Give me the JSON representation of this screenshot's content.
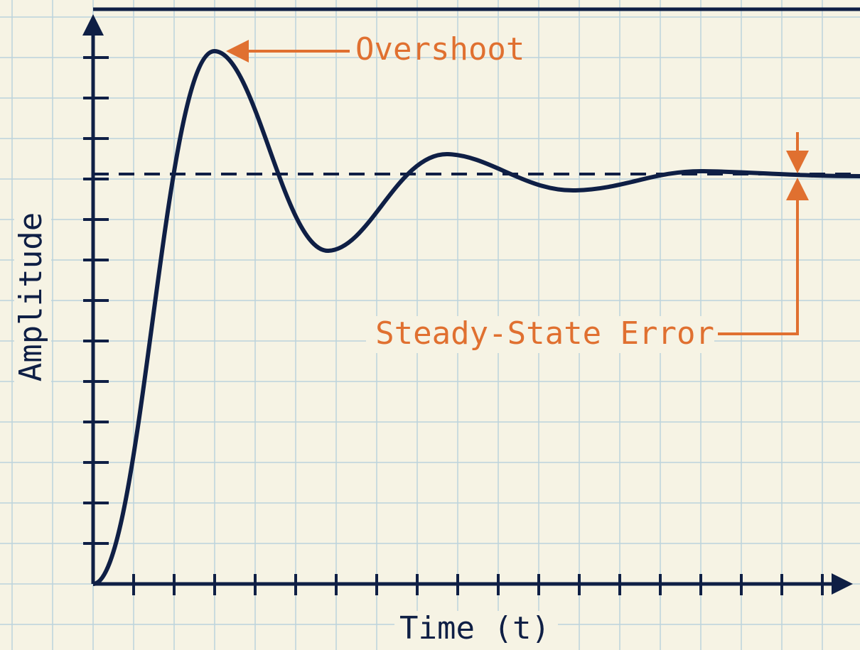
{
  "diagram": {
    "y_axis_label": "Amplitude",
    "x_axis_label": "Time (t)",
    "annotations": {
      "overshoot": "Overshoot",
      "steady_state_error": "Steady-State Error"
    }
  }
}
